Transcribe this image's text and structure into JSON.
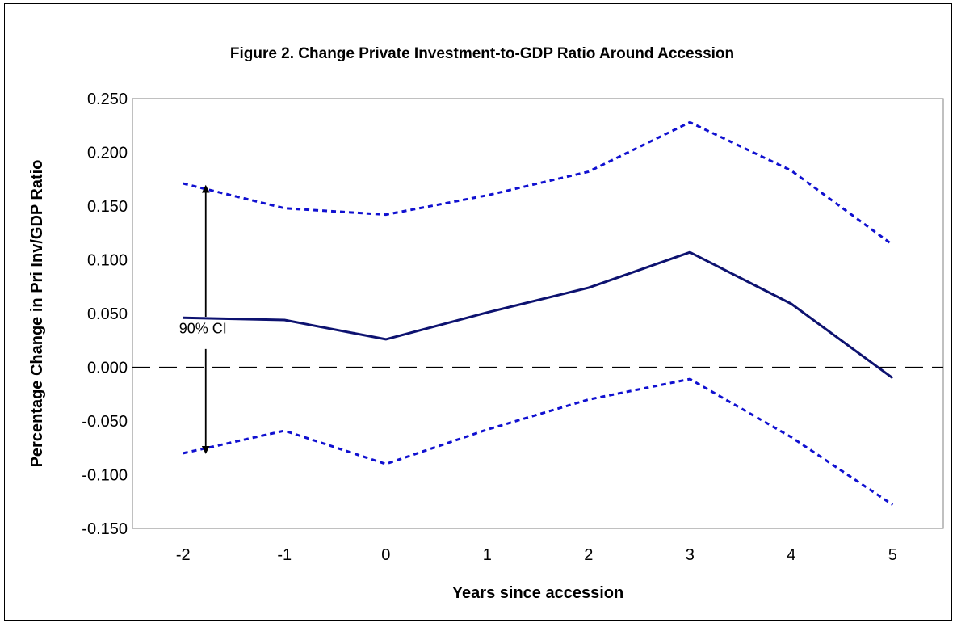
{
  "chart_data": {
    "type": "line",
    "title": "Figure 2. Change Private Investment-to-GDP Ratio Around Accession",
    "xlabel": "Years since accession",
    "ylabel": "Percentage Change in Pri Inv/GDP Ratio",
    "categories": [
      "-2",
      "-1",
      "0",
      "1",
      "2",
      "3",
      "4",
      "5"
    ],
    "ylim": [
      -0.15,
      0.25
    ],
    "yticks": [
      "0.250",
      "0.200",
      "0.150",
      "0.100",
      "0.050",
      "0.000",
      "-0.050",
      "-0.100",
      "-0.150"
    ],
    "series": [
      {
        "role": "estimate",
        "style": "solid",
        "color": "#0d1270",
        "values": [
          0.046,
          0.044,
          0.026,
          0.051,
          0.074,
          0.107,
          0.059,
          -0.01
        ]
      },
      {
        "role": "upper-ci",
        "style": "dotted",
        "color": "#1010d0",
        "values": [
          0.171,
          0.148,
          0.142,
          0.16,
          0.182,
          0.228,
          0.183,
          0.114
        ]
      },
      {
        "role": "lower-ci",
        "style": "dotted",
        "color": "#1010d0",
        "values": [
          -0.08,
          -0.059,
          -0.09,
          -0.058,
          -0.03,
          -0.011,
          -0.065,
          -0.128
        ]
      }
    ],
    "zero_line": {
      "value": 0.0,
      "style": "dashed"
    },
    "annotation": {
      "text": "90% CI",
      "x": "-2",
      "from": -0.077,
      "to": 0.166
    },
    "grid": false,
    "legend": "none"
  }
}
